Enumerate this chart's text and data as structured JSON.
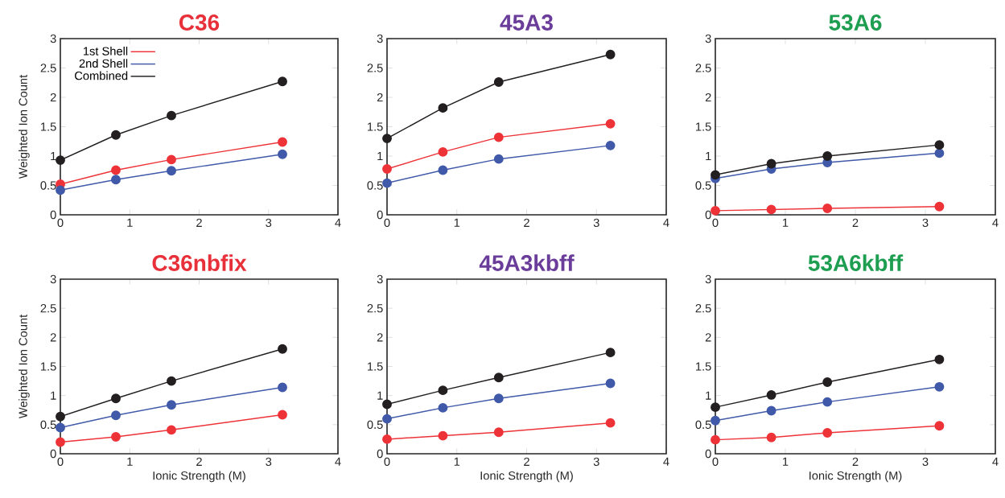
{
  "chart_data": [
    {
      "type": "line",
      "title": "C36",
      "ylabel": "Weighted  Ion Count",
      "x": [
        0,
        0.8,
        1.6,
        3.2
      ],
      "xlim": [
        0,
        4
      ],
      "ylim": [
        0,
        3
      ],
      "xticks": [
        0,
        1,
        2,
        3,
        4
      ],
      "yticks": [
        0,
        0.5,
        1,
        1.5,
        2,
        2.5,
        3
      ],
      "marker": "circle",
      "legend": "top left",
      "series": [
        {
          "name": "1st Shell",
          "color": "#ee3338",
          "values": [
            0.52,
            0.76,
            0.94,
            1.24
          ]
        },
        {
          "name": "2nd Shell",
          "color": "#4059a9",
          "values": [
            0.42,
            0.6,
            0.75,
            1.03
          ]
        },
        {
          "name": "Combined",
          "color": "#231f20",
          "values": [
            0.93,
            1.36,
            1.69,
            2.27
          ]
        }
      ]
    },
    {
      "type": "line",
      "title": "45A3",
      "x": [
        0,
        0.8,
        1.6,
        3.2
      ],
      "xlim": [
        0,
        4
      ],
      "ylim": [
        0,
        3
      ],
      "xticks": [
        0,
        1,
        2,
        3,
        4
      ],
      "yticks": [
        0,
        0.5,
        1,
        1.5,
        2,
        2.5,
        3
      ],
      "marker": "circle",
      "series": [
        {
          "color": "#ee3338",
          "values": [
            0.78,
            1.07,
            1.32,
            1.55
          ]
        },
        {
          "color": "#4059a9",
          "values": [
            0.54,
            0.76,
            0.95,
            1.18
          ]
        },
        {
          "color": "#231f20",
          "values": [
            1.3,
            1.82,
            2.26,
            2.73
          ]
        }
      ]
    },
    {
      "type": "line",
      "title": "53A6",
      "x": [
        0,
        0.8,
        1.6,
        3.2
      ],
      "xlim": [
        0,
        4
      ],
      "ylim": [
        0,
        3
      ],
      "xticks": [
        0,
        1,
        2,
        3,
        4
      ],
      "yticks": [
        0,
        0.5,
        1,
        1.5,
        2,
        2.5,
        3
      ],
      "marker": "circle",
      "series": [
        {
          "color": "#ee3338",
          "values": [
            0.07,
            0.09,
            0.11,
            0.14
          ]
        },
        {
          "color": "#4059a9",
          "values": [
            0.62,
            0.78,
            0.89,
            1.05
          ]
        },
        {
          "color": "#231f20",
          "values": [
            0.68,
            0.87,
            1.0,
            1.19
          ]
        }
      ]
    },
    {
      "type": "line",
      "title": "C36nbfix",
      "xlabel": "Ionic Strength (M)",
      "ylabel": "Weighted  Ion Count",
      "x": [
        0,
        0.8,
        1.6,
        3.2
      ],
      "xlim": [
        0,
        4
      ],
      "ylim": [
        0,
        3
      ],
      "xticks": [
        0,
        1,
        2,
        3,
        4
      ],
      "yticks": [
        0,
        0.5,
        1,
        1.5,
        2,
        2.5,
        3
      ],
      "marker": "circle",
      "series": [
        {
          "color": "#ee3338",
          "values": [
            0.2,
            0.29,
            0.41,
            0.67
          ]
        },
        {
          "color": "#4059a9",
          "values": [
            0.45,
            0.66,
            0.84,
            1.14
          ]
        },
        {
          "color": "#231f20",
          "values": [
            0.64,
            0.95,
            1.25,
            1.8
          ]
        }
      ]
    },
    {
      "type": "line",
      "title": "45A3kbff",
      "xlabel": "Ionic Strength (M)",
      "x": [
        0,
        0.8,
        1.6,
        3.2
      ],
      "xlim": [
        0,
        4
      ],
      "ylim": [
        0,
        3
      ],
      "xticks": [
        0,
        1,
        2,
        3,
        4
      ],
      "yticks": [
        0,
        0.5,
        1,
        1.5,
        2,
        2.5,
        3
      ],
      "marker": "circle",
      "series": [
        {
          "color": "#ee3338",
          "values": [
            0.25,
            0.31,
            0.37,
            0.53
          ]
        },
        {
          "color": "#4059a9",
          "values": [
            0.6,
            0.79,
            0.95,
            1.21
          ]
        },
        {
          "color": "#231f20",
          "values": [
            0.85,
            1.09,
            1.31,
            1.74
          ]
        }
      ]
    },
    {
      "type": "line",
      "title": "53A6kbff",
      "xlabel": "Ionic Strength (M)",
      "x": [
        0,
        0.8,
        1.6,
        3.2
      ],
      "xlim": [
        0,
        4
      ],
      "ylim": [
        0,
        3
      ],
      "xticks": [
        0,
        1,
        2,
        3,
        4
      ],
      "yticks": [
        0,
        0.5,
        1,
        1.5,
        2,
        2.5,
        3
      ],
      "marker": "circle",
      "series": [
        {
          "color": "#ee3338",
          "values": [
            0.24,
            0.28,
            0.36,
            0.48
          ]
        },
        {
          "color": "#4059a9",
          "values": [
            0.57,
            0.74,
            0.89,
            1.15
          ]
        },
        {
          "color": "#231f20",
          "values": [
            0.8,
            1.01,
            1.23,
            1.62
          ]
        }
      ]
    }
  ]
}
